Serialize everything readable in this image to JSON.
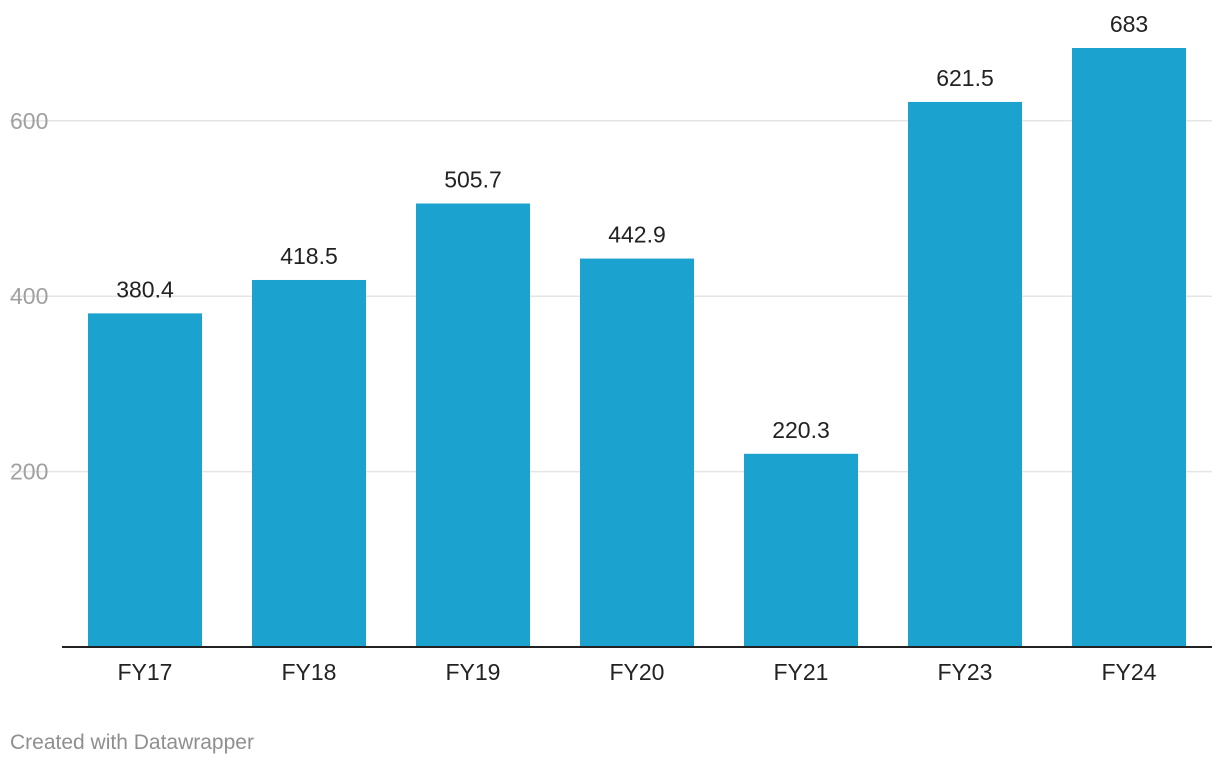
{
  "chart_data": {
    "type": "bar",
    "categories": [
      "FY17",
      "FY18",
      "FY19",
      "FY20",
      "FY21",
      "FY23",
      "FY24"
    ],
    "values": [
      380.4,
      418.5,
      505.7,
      442.9,
      220.3,
      621.5,
      683
    ],
    "value_labels": [
      "380.4",
      "418.5",
      "505.7",
      "442.9",
      "220.3",
      "621.5",
      "683"
    ],
    "yticks": [
      200,
      400,
      600
    ],
    "ylim": [
      0,
      683
    ],
    "grid": true,
    "legend": "none",
    "bar_color": "#1ba2cf",
    "gridline_color": "#e5e5e5",
    "axis_color": "#222222"
  },
  "footer": {
    "credit": "Created with Datawrapper"
  }
}
